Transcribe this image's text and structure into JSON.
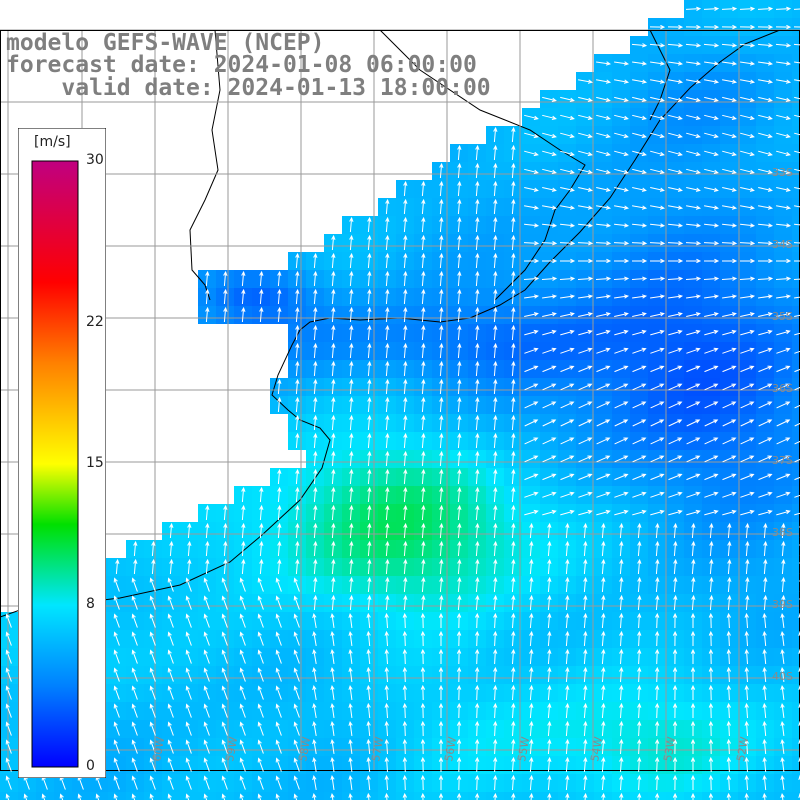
{
  "title": {
    "line1": "modelo GEFS-WAVE (NCEP)",
    "line2": "forecast date: 2024-01-08 06:00:00",
    "line3": "    valid date: 2024-01-13 18:00:00"
  },
  "colorbar": {
    "unit": "[m/s]",
    "min": 0,
    "max": 30,
    "ticks": [
      {
        "value": 30,
        "label": "30"
      },
      {
        "value": 22,
        "label": "22"
      },
      {
        "value": 15,
        "label": "15"
      },
      {
        "value": 8,
        "label": "8"
      },
      {
        "value": 0,
        "label": "0"
      }
    ],
    "stops": [
      {
        "value": 0,
        "color": "#0000ff"
      },
      {
        "value": 4,
        "color": "#0080ff"
      },
      {
        "value": 8,
        "color": "#00e6ff"
      },
      {
        "value": 12,
        "color": "#00e000"
      },
      {
        "value": 15,
        "color": "#ffff00"
      },
      {
        "value": 20,
        "color": "#ff8000"
      },
      {
        "value": 24,
        "color": "#ff0000"
      },
      {
        "value": 30,
        "color": "#c00080"
      }
    ]
  },
  "map": {
    "field": "wind speed",
    "lat_labels": [
      "33S",
      "34S",
      "35S",
      "36S",
      "37S",
      "38S",
      "39S",
      "40S"
    ],
    "lon_labels": [
      "60W",
      "59W",
      "58W",
      "57W",
      "56W",
      "55W",
      "54W",
      "53W",
      "52W"
    ],
    "colors": {
      "land": "#ffffff",
      "coast": "#000000",
      "grid": "#9a9a9a",
      "arrows": "#ffffff",
      "label": "#8a8a8a"
    }
  }
}
